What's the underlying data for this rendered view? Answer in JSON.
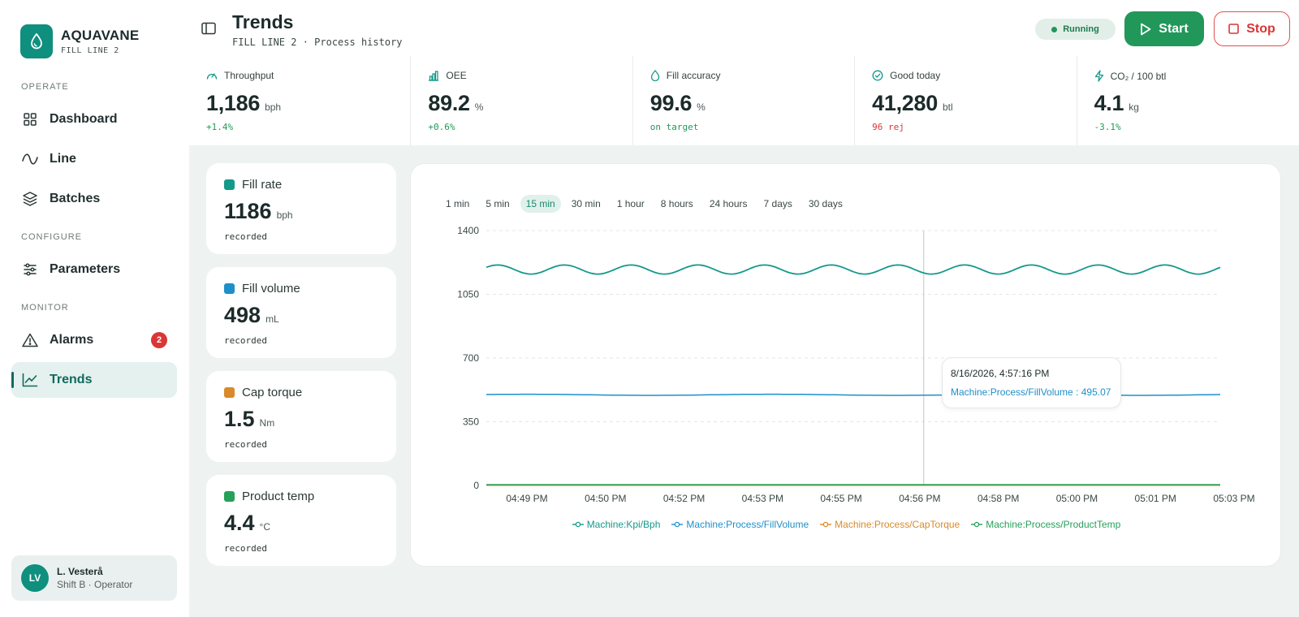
{
  "brand": {
    "name": "AQUAVANE",
    "sub": "FILL LINE 2"
  },
  "sidebar": {
    "sections": [
      {
        "label": "OPERATE"
      },
      {
        "label": "CONFIGURE"
      },
      {
        "label": "MONITOR"
      }
    ],
    "items": [
      {
        "label": "Dashboard",
        "icon": "grid-icon"
      },
      {
        "label": "Line",
        "icon": "wave-icon"
      },
      {
        "label": "Batches",
        "icon": "layers-icon"
      },
      {
        "label": "Parameters",
        "icon": "sliders-icon"
      },
      {
        "label": "Alarms",
        "icon": "warning-icon",
        "badge": "2"
      },
      {
        "label": "Trends",
        "icon": "chart-line-icon",
        "active": true
      }
    ]
  },
  "user": {
    "initials": "LV",
    "name": "L. Vesterå",
    "role": "Shift B · Operator"
  },
  "header": {
    "title": "Trends",
    "subtitle": "FILL LINE 2 · Process history",
    "status": "Running",
    "start_label": "Start",
    "stop_label": "Stop"
  },
  "kpis": [
    {
      "label": "Throughput",
      "value": "1,186",
      "unit": "bph",
      "delta": "+1.4%",
      "tone": "pos",
      "icon": "gauge-icon"
    },
    {
      "label": "OEE",
      "value": "89.2",
      "unit": "%",
      "delta": "+0.6%",
      "tone": "pos",
      "icon": "bar-chart-icon"
    },
    {
      "label": "Fill accuracy",
      "value": "99.6",
      "unit": "%",
      "delta": "on target",
      "tone": "pos",
      "icon": "droplet-icon"
    },
    {
      "label": "Good today",
      "value": "41,280",
      "unit": "btl",
      "delta": "96 rej",
      "tone": "neg",
      "icon": "check-circle-icon"
    },
    {
      "label": "CO₂ / 100 btl",
      "value": "4.1",
      "unit": "kg",
      "delta": "-3.1%",
      "tone": "pos",
      "icon": "bolt-icon"
    }
  ],
  "cards": [
    {
      "label": "Fill rate",
      "value": "1186",
      "unit": "bph",
      "note": "recorded",
      "color": "#14998a"
    },
    {
      "label": "Fill volume",
      "value": "498",
      "unit": "mL",
      "note": "recorded",
      "color": "#1f8fc8"
    },
    {
      "label": "Cap torque",
      "value": "1.5",
      "unit": "Nm",
      "note": "recorded",
      "color": "#d98a2b"
    },
    {
      "label": "Product temp",
      "value": "4.4",
      "unit": "°C",
      "note": "recorded",
      "color": "#27a05a"
    }
  ],
  "ranges": [
    "1 min",
    "5 min",
    "15 min",
    "30 min",
    "1 hour",
    "8 hours",
    "24 hours",
    "7 days",
    "30 days"
  ],
  "active_range": "15 min",
  "tooltip": {
    "time": "8/16/2026, 4:57:16 PM",
    "series": "Machine:Process/FillVolume",
    "value": "495.07"
  },
  "chart_data": {
    "type": "line",
    "x": [
      "04:49 PM",
      "04:50 PM",
      "04:52 PM",
      "04:53 PM",
      "04:55 PM",
      "04:56 PM",
      "04:58 PM",
      "05:00 PM",
      "05:01 PM",
      "05:03 PM"
    ],
    "ylim": [
      0,
      1400
    ],
    "yticks": [
      0,
      350,
      700,
      1050,
      1400
    ],
    "grid": true,
    "legend_position": "bottom",
    "cursor_x": "04:57 PM",
    "series": [
      {
        "name": "Machine:Kpi/Bph",
        "color": "#14998a",
        "baseline": 1186,
        "amplitude": 25,
        "cycles": 11
      },
      {
        "name": "Machine:Process/FillVolume",
        "color": "#1f8fc8",
        "baseline": 498,
        "amplitude": 3,
        "cycles": 3
      },
      {
        "name": "Machine:Process/CapTorque",
        "color": "#d98a2b",
        "baseline": 1.5,
        "amplitude": 0,
        "cycles": 0
      },
      {
        "name": "Machine:Process/ProductTemp",
        "color": "#27a05a",
        "baseline": 4.4,
        "amplitude": 0,
        "cycles": 0
      }
    ]
  }
}
